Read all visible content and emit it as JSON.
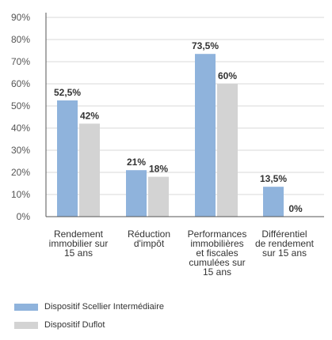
{
  "chart_data": {
    "type": "bar",
    "categories": [
      "Rendement immobilier sur 15 ans",
      "Réduction d'impôt",
      "Performances immobilières et fiscales cumulées sur 15 ans",
      "Différentiel de rendement sur 15 ans"
    ],
    "category_lines": [
      [
        "Rendement",
        "immobilier sur",
        "15 ans"
      ],
      [
        "Réduction",
        "d'impôt"
      ],
      [
        "Performances",
        "immobilières",
        "et fiscales",
        "cumulées sur",
        "15 ans"
      ],
      [
        "Différentiel",
        "de rendement",
        "sur 15 ans"
      ]
    ],
    "series": [
      {
        "name": "Dispositif Scellier Intermédiaire",
        "values": [
          52.5,
          21,
          73.5,
          13.5
        ],
        "labels": [
          "52,5%",
          "21%",
          "73,5%",
          "13,5%"
        ],
        "color": "#8fb3dc"
      },
      {
        "name": "Dispositif Duflot",
        "values": [
          42,
          18,
          60,
          0
        ],
        "labels": [
          "42%",
          "18%",
          "60%",
          "0%"
        ],
        "color": "#d3d3d3"
      }
    ],
    "ylim": [
      0,
      90
    ],
    "yticks": [
      "0%",
      "10%",
      "20%",
      "30%",
      "40%",
      "50%",
      "60%",
      "70%",
      "80%",
      "90%"
    ],
    "grid": true,
    "legend_position": "bottom-left"
  },
  "colors": {
    "grid": "#d9d9d9",
    "axis": "#555555"
  }
}
